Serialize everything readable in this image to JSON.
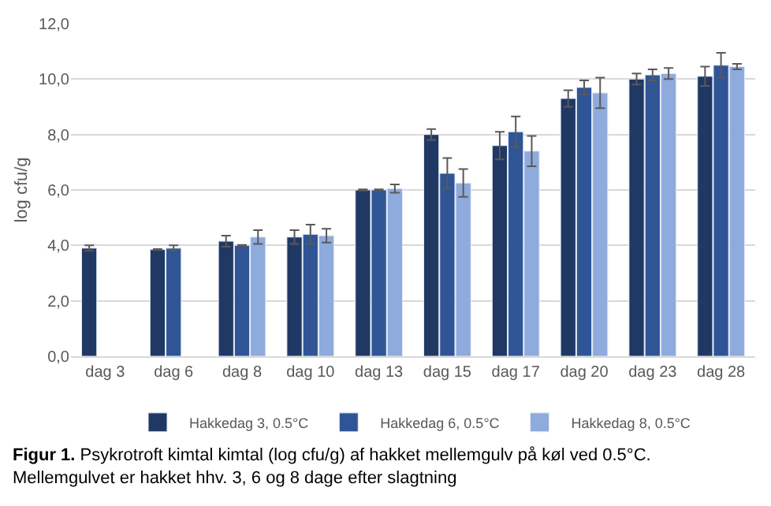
{
  "chart_data": {
    "type": "bar",
    "ylabel": "log cfu/g",
    "categories": [
      "dag 3",
      "dag 6",
      "dag 8",
      "dag 10",
      "dag 13",
      "dag 15",
      "dag 17",
      "dag 20",
      "dag 23",
      "dag 28"
    ],
    "series": [
      {
        "name": "Hakkedag 3, 0.5°C",
        "color": "#203864",
        "values": [
          3.9,
          3.85,
          4.15,
          4.3,
          6.0,
          8.0,
          7.6,
          9.3,
          10.0,
          10.1
        ],
        "errors": [
          0.1,
          0.02,
          0.2,
          0.25,
          0.02,
          0.2,
          0.5,
          0.3,
          0.2,
          0.35
        ]
      },
      {
        "name": "Hakkedag 6, 0.5°C",
        "color": "#2f5597",
        "values": [
          null,
          3.9,
          4.0,
          4.4,
          6.0,
          6.6,
          8.1,
          9.7,
          10.15,
          10.5
        ],
        "errors": [
          null,
          0.1,
          0.02,
          0.35,
          0.02,
          0.55,
          0.55,
          0.25,
          0.2,
          0.45
        ]
      },
      {
        "name": "Hakkedag 8, 0.5°C",
        "color": "#8faadc",
        "values": [
          null,
          null,
          4.3,
          4.35,
          6.05,
          6.25,
          7.4,
          9.5,
          10.2,
          10.45
        ],
        "errors": [
          null,
          null,
          0.25,
          0.25,
          0.15,
          0.5,
          0.55,
          0.55,
          0.2,
          0.1
        ]
      }
    ],
    "ylim": [
      0,
      12
    ],
    "yticks": [
      {
        "value": 0,
        "label": "0,0"
      },
      {
        "value": 2,
        "label": "2,0"
      },
      {
        "value": 4,
        "label": "4,0"
      },
      {
        "value": 6,
        "label": "6,0"
      },
      {
        "value": 8,
        "label": "8,0"
      },
      {
        "value": 10,
        "label": "10,0"
      },
      {
        "value": 12,
        "label": "12,0"
      }
    ],
    "grid": "y",
    "legend": "bottom",
    "annotations": [
      "Figur 1.",
      "Psykrotroft kimtal kimtal (log cfu/g) af hakket mellemgulv på køl ved 0.5°C. Mellemgulvet er hakket hhv. 3, 6 og 8 dage efter slagtning"
    ]
  }
}
